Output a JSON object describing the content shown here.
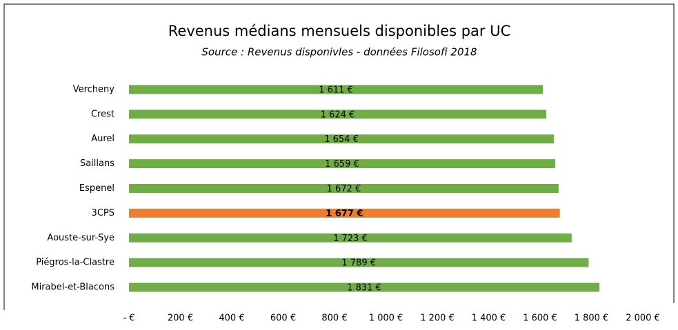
{
  "chart_data": {
    "type": "bar",
    "orientation": "horizontal",
    "title": "Revenus médians mensuels disponibles par UC",
    "subtitle": "Source : Revenus disponivles - données Filosofi 2018",
    "categories": [
      "Vercheny",
      "Crest",
      "Aurel",
      "Saillans",
      "Espenel",
      "3CPS",
      "Aouste-sur-Sye",
      "Piégros-la-Clastre",
      "Mirabel-et-Blacons"
    ],
    "values": [
      1611,
      1624,
      1654,
      1659,
      1672,
      1677,
      1723,
      1789,
      1831
    ],
    "value_labels": [
      "1 611 €",
      "1 624 €",
      "1 654 €",
      "1 659 €",
      "1 672 €",
      "1 677 €",
      "1 723 €",
      "1 789 €",
      "1 831 €"
    ],
    "colors": [
      "#70ad47",
      "#70ad47",
      "#70ad47",
      "#70ad47",
      "#70ad47",
      "#ed7d31",
      "#70ad47",
      "#70ad47",
      "#70ad47"
    ],
    "xlim": [
      0,
      2000
    ],
    "xticks": [
      {
        "value": 0,
        "label": "-   €"
      },
      {
        "value": 200,
        "label": "200 €"
      },
      {
        "value": 400,
        "label": "400 €"
      },
      {
        "value": 600,
        "label": "600 €"
      },
      {
        "value": 800,
        "label": "800 €"
      },
      {
        "value": 1000,
        "label": "1 000 €"
      },
      {
        "value": 1200,
        "label": "1 200 €"
      },
      {
        "value": 1400,
        "label": "1 400 €"
      },
      {
        "value": 1600,
        "label": "1 600 €"
      },
      {
        "value": 1800,
        "label": "1 800 €"
      },
      {
        "value": 2000,
        "label": "2 000 €"
      }
    ],
    "grid": false
  }
}
